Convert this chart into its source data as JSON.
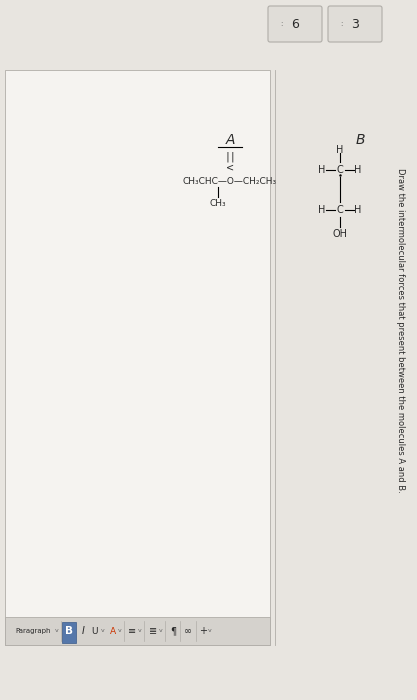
{
  "bg_color": "#dedad5",
  "content_bg": "#e8e5e0",
  "white_bg": "#f5f3f0",
  "toolbar_bg": "#d5d2cd",
  "tab_bg": "#e0ddd8",
  "tab_border": "#b0ada8",
  "text_color": "#2a2a2a",
  "title": "Draw the intermolecular forces that present between the molecules A and B.",
  "tab1": "3",
  "tab2": "6",
  "label_A": "A",
  "label_B": "B",
  "mol_A_double": "||",
  "mol_A_O": "O",
  "mol_A_chain": "CH₃CHC—O—CH₂CH₃",
  "mol_A_sub": "CH₃",
  "mol_B_H1": "H",
  "mol_B_C1": "C",
  "mol_B_H2": "H",
  "mol_B_H3": "H",
  "mol_B_C2": "C",
  "mol_B_H4": "H",
  "mol_B_H5": "H",
  "mol_B_OH": "OH",
  "toolbar_para": "Paragraph",
  "toolbar_B": "B",
  "toolbar_I": "I",
  "toolbar_U": "U",
  "toolbar_A": "A",
  "bold_bg": "#5577aa",
  "bold_fg": "#ffffff",
  "red_color": "#cc3300",
  "gray_text": "#666666"
}
